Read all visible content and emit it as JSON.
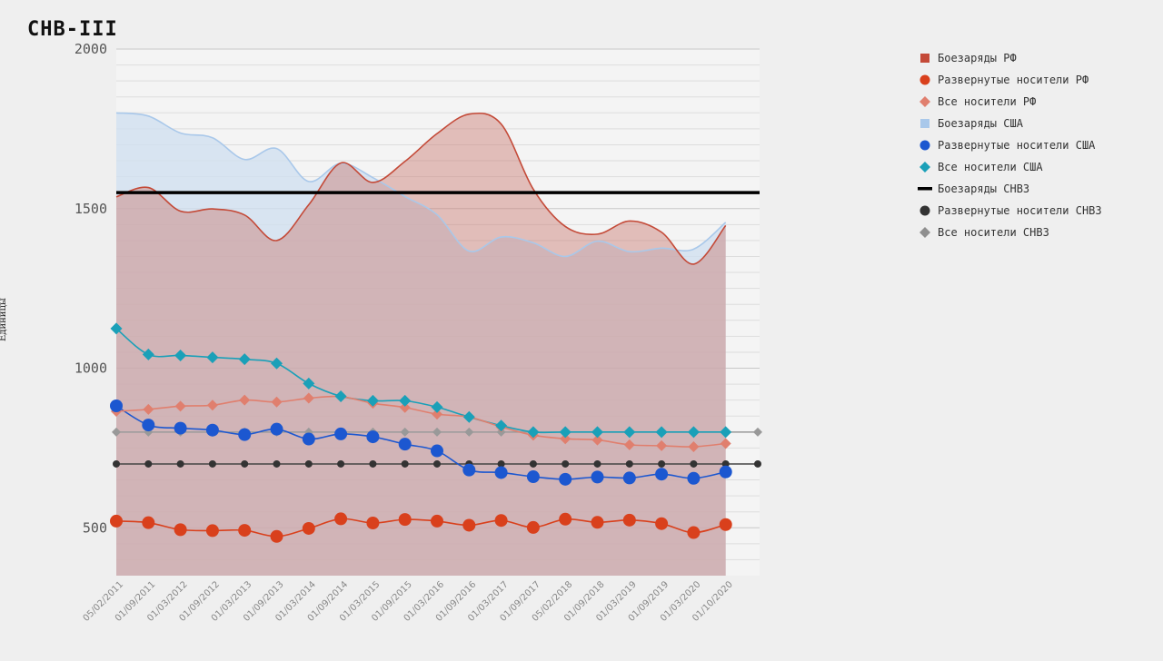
{
  "chart_data": {
    "type": "line",
    "title": "СНВ-III",
    "ylabel": "Единицы",
    "xlabel": "",
    "ylim": [
      350,
      2000
    ],
    "yticks": [
      500,
      1000,
      1500,
      2000
    ],
    "grid": true,
    "legend_position": "right",
    "x": [
      "05/02/2011",
      "01/09/2011",
      "01/03/2012",
      "01/09/2012",
      "01/03/2013",
      "01/09/2013",
      "01/03/2014",
      "01/09/2014",
      "01/03/2015",
      "01/09/2015",
      "01/03/2016",
      "01/09/2016",
      "01/03/2017",
      "01/09/2017",
      "05/02/2018",
      "01/09/2018",
      "01/03/2019",
      "01/09/2019",
      "01/03/2020",
      "01/10/2020"
    ],
    "series": [
      {
        "name": "Боезаряды РФ",
        "style": "area",
        "color": "#c44a38",
        "values": [
          1537,
          1566,
          1492,
          1499,
          1480,
          1400,
          1512,
          1643,
          1582,
          1648,
          1735,
          1796,
          1765,
          1561,
          1444,
          1420,
          1461,
          1426,
          1326,
          1447
        ]
      },
      {
        "name": "Развернутые носители РФ",
        "style": "circle",
        "color": "#d9401c",
        "values": [
          521,
          516,
          494,
          491,
          492,
          473,
          498,
          528,
          515,
          526,
          521,
          508,
          523,
          501,
          527,
          517,
          524,
          513,
          485,
          510
        ]
      },
      {
        "name": "Все носители РФ",
        "style": "diamond",
        "color": "#e07f6e",
        "values": [
          865,
          871,
          881,
          884,
          900,
          894,
          906,
          911,
          890,
          877,
          856,
          847,
          816,
          790,
          779,
          775,
          760,
          757,
          754,
          764
        ]
      },
      {
        "name": "Боезаряды США",
        "style": "area",
        "color": "#a9c8ea",
        "values": [
          1800,
          1790,
          1737,
          1722,
          1654,
          1688,
          1585,
          1642,
          1597,
          1538,
          1481,
          1367,
          1411,
          1393,
          1350,
          1398,
          1365,
          1376,
          1373,
          1457
        ]
      },
      {
        "name": "Развернутые носители США",
        "style": "circle",
        "color": "#1c57d0",
        "values": [
          882,
          822,
          812,
          806,
          792,
          809,
          778,
          794,
          785,
          762,
          741,
          681,
          673,
          660,
          652,
          659,
          656,
          668,
          655,
          675
        ]
      },
      {
        "name": "Все носители США",
        "style": "diamond",
        "color": "#1aa0b8",
        "values": [
          1124,
          1043,
          1040,
          1034,
          1028,
          1015,
          952,
          912,
          898,
          898,
          878,
          847,
          820,
          800,
          800,
          800,
          800,
          800,
          800,
          800
        ]
      },
      {
        "name": "Боезаряды СНВ3",
        "style": "limit-line",
        "color": "#000000",
        "values": [
          1550,
          1550,
          1550,
          1550,
          1550,
          1550,
          1550,
          1550,
          1550,
          1550,
          1550,
          1550,
          1550,
          1550,
          1550,
          1550,
          1550,
          1550,
          1550,
          1550
        ]
      },
      {
        "name": "Развернутые носители СНВ3",
        "style": "limit-circle",
        "color": "#333333",
        "values": [
          700,
          700,
          700,
          700,
          700,
          700,
          700,
          700,
          700,
          700,
          700,
          700,
          700,
          700,
          700,
          700,
          700,
          700,
          700,
          700
        ]
      },
      {
        "name": "Все носители СНВ3",
        "style": "limit-diamond",
        "color": "#8f8f8f",
        "values": [
          800,
          800,
          800,
          800,
          800,
          800,
          800,
          800,
          800,
          800,
          800,
          800,
          800,
          800,
          800,
          800,
          800,
          800,
          800,
          800
        ]
      }
    ]
  }
}
